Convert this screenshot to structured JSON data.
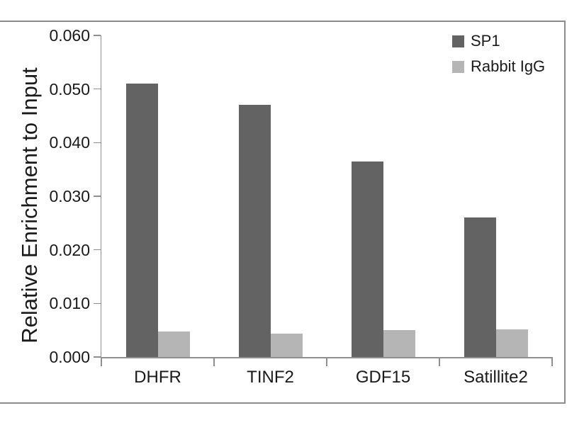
{
  "chart_data": {
    "type": "bar",
    "title": "",
    "xlabel": "",
    "ylabel": "Relative Enrichment to Input",
    "categories": [
      "DHFR",
      "TINF2",
      "GDF15",
      "Satillite2"
    ],
    "series": [
      {
        "name": "SP1",
        "color": "#636363",
        "values": [
          0.051,
          0.047,
          0.0365,
          0.026
        ]
      },
      {
        "name": "Rabbit IgG",
        "color": "#b5b5b5",
        "values": [
          0.0047,
          0.0044,
          0.005,
          0.0052
        ]
      }
    ],
    "ylim": [
      0,
      0.06
    ],
    "ytick_step": 0.01,
    "ytick_labels": [
      "0.060",
      "0.050",
      "0.040",
      "0.030",
      "0.020",
      "0.010",
      "0.000"
    ],
    "grid": false,
    "legend_position": "top-right",
    "colors": {
      "text": "#1a1a1a",
      "axis": "#8f8f8f",
      "frame": "#8c8c8c",
      "background": "#ffffff"
    }
  }
}
